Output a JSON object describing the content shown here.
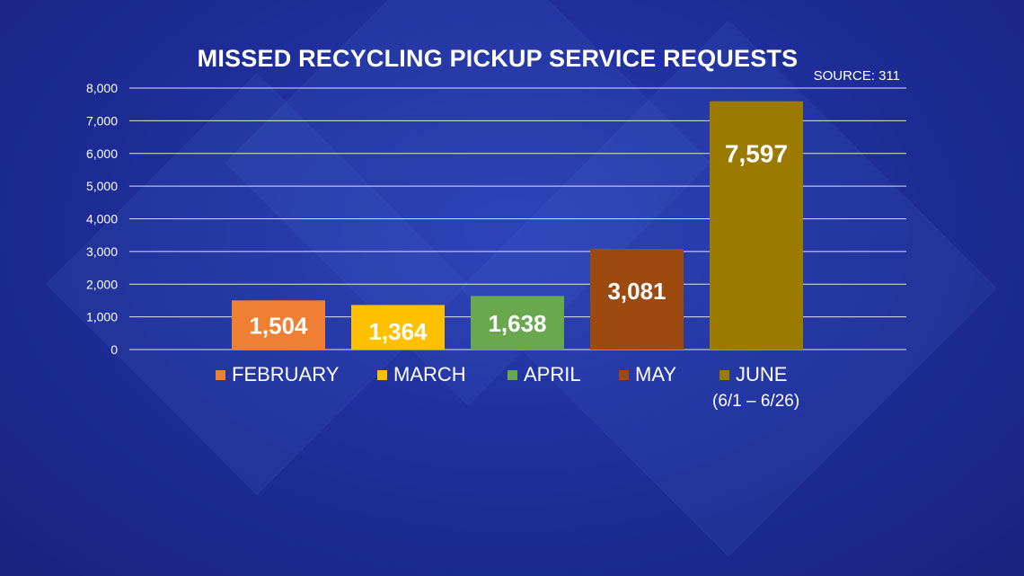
{
  "chart_data": {
    "type": "bar",
    "title": "MISSED RECYCLING PICKUP SERVICE REQUESTS",
    "source": "SOURCE: 311",
    "categories": [
      "FEBRUARY",
      "MARCH",
      "APRIL",
      "MAY",
      "JUNE"
    ],
    "category_notes": [
      "",
      "",
      "",
      "",
      "(6/1 – 6/26)"
    ],
    "values": [
      1504,
      1364,
      1638,
      3081,
      7597
    ],
    "value_labels": [
      "1,504",
      "1,364",
      "1,638",
      "3,081",
      "7,597"
    ],
    "colors": [
      "#ee7f33",
      "#ffc000",
      "#6aa84f",
      "#9c4a0f",
      "#9b7a00"
    ],
    "ylim": [
      0,
      8000
    ],
    "yticks": [
      0,
      1000,
      2000,
      3000,
      4000,
      5000,
      6000,
      7000,
      8000
    ],
    "ytick_labels": [
      "0",
      "1,000",
      "2,000",
      "3,000",
      "4,000",
      "5,000",
      "6,000",
      "7,000",
      "8,000"
    ],
    "grid": true,
    "legend_position": "bottom",
    "xlabel": "",
    "ylabel": ""
  }
}
